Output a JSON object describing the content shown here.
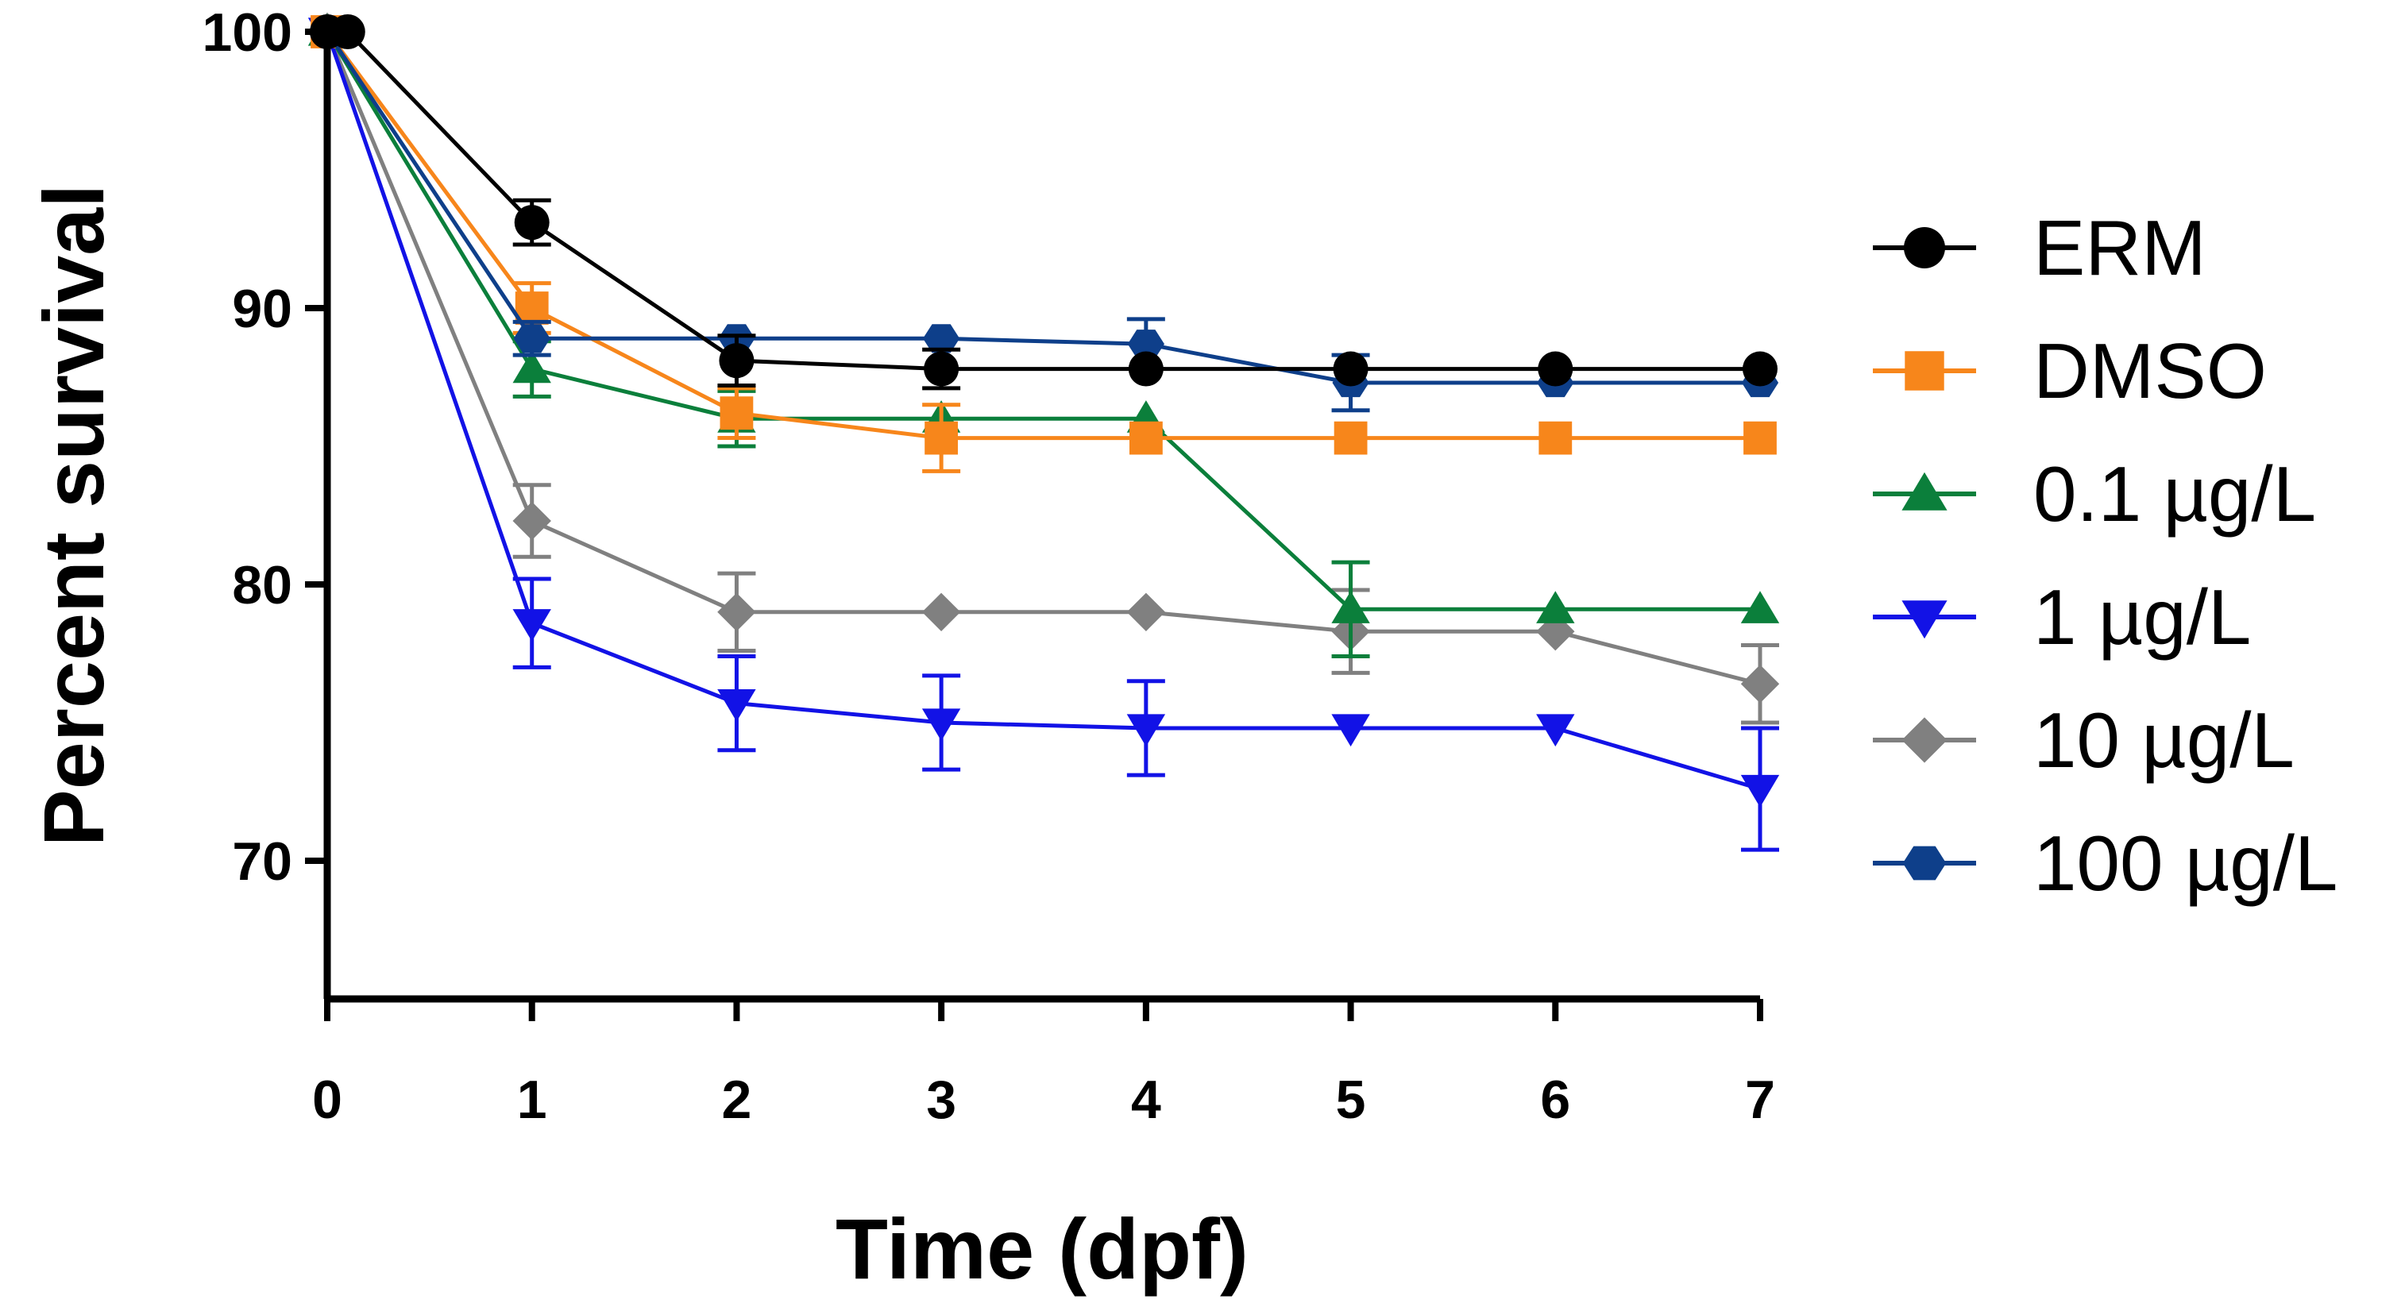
{
  "chart_data": {
    "type": "line",
    "title": "",
    "xlabel": "Time (dpf)",
    "ylabel": "Percent survival",
    "xlim": [
      0,
      7
    ],
    "ylim": [
      65,
      100
    ],
    "xticks": [
      "0",
      "1",
      "2",
      "3",
      "4",
      "5",
      "6",
      "7"
    ],
    "yticks": [
      "70",
      "80",
      "90",
      "100"
    ],
    "grid": false,
    "legend_position": "right",
    "series": [
      {
        "name": "ERM",
        "color": "#000000",
        "marker": "circle",
        "x": [
          0,
          0.1,
          1,
          2,
          3,
          4,
          5,
          6,
          7
        ],
        "y": [
          100,
          100,
          93.1,
          88.1,
          87.8,
          87.8,
          87.8,
          87.8,
          87.8
        ],
        "err": [
          0,
          0,
          0.8,
          0.9,
          0.7,
          0,
          0,
          0,
          0
        ]
      },
      {
        "name": "DMSO",
        "color": "#F7861B",
        "marker": "square",
        "x": [
          0,
          1,
          2,
          3,
          4,
          5,
          6,
          7
        ],
        "y": [
          100,
          90.0,
          86.2,
          85.3,
          85.3,
          85.3,
          85.3,
          85.3
        ],
        "err": [
          0,
          0.9,
          0.9,
          1.2,
          0,
          0,
          0,
          0
        ]
      },
      {
        "name": "0.1 µg/L",
        "color": "#0B7F3B",
        "marker": "triangle-up",
        "x": [
          0,
          1,
          2,
          3,
          4,
          5,
          6,
          7
        ],
        "y": [
          100,
          87.8,
          86.0,
          86.0,
          86.0,
          79.1,
          79.1,
          79.1
        ],
        "err": [
          0,
          1.0,
          1.0,
          0,
          0,
          1.7,
          0,
          0
        ]
      },
      {
        "name": "1 µg/L",
        "color": "#1212E6",
        "marker": "triangle-down",
        "x": [
          0,
          1,
          2,
          3,
          4,
          5,
          6,
          7
        ],
        "y": [
          100,
          78.6,
          75.7,
          75.0,
          74.8,
          74.8,
          74.8,
          72.6
        ],
        "err": [
          0,
          1.6,
          1.7,
          1.7,
          1.7,
          0,
          0,
          2.2
        ]
      },
      {
        "name": "10 µg/L",
        "color": "#808080",
        "marker": "diamond",
        "x": [
          0,
          1,
          2,
          3,
          4,
          5,
          6,
          7
        ],
        "y": [
          100,
          82.3,
          79.0,
          79.0,
          79.0,
          78.3,
          78.3,
          76.4
        ],
        "err": [
          0,
          1.3,
          1.4,
          0,
          0,
          1.5,
          0,
          1.4
        ]
      },
      {
        "name": "100 µg/L",
        "color": "#0E3F8A",
        "marker": "hexagon",
        "x": [
          0,
          1,
          2,
          3,
          4,
          5,
          6,
          7
        ],
        "y": [
          100,
          88.9,
          88.9,
          88.9,
          88.7,
          87.3,
          87.3,
          87.3
        ],
        "err": [
          0,
          0.6,
          0,
          0,
          0.9,
          1.0,
          0,
          0
        ]
      }
    ]
  }
}
